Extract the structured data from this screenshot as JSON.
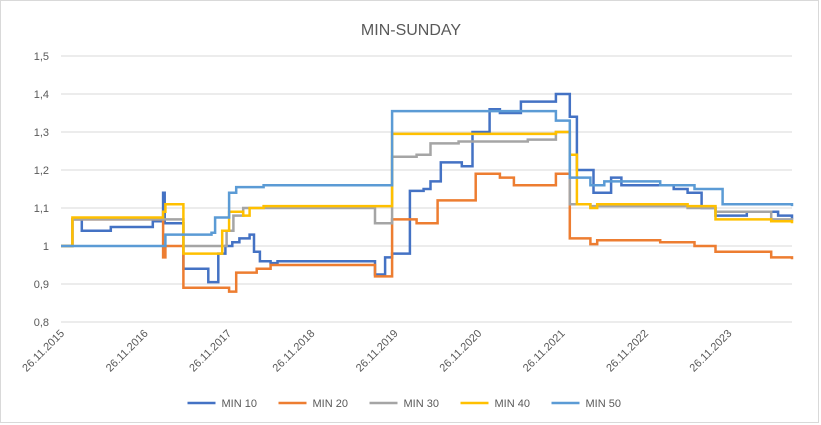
{
  "chart_data": {
    "type": "line",
    "title": "MIN-SUNDAY",
    "xlabel": "",
    "ylabel": "",
    "ylim": [
      0.8,
      1.5
    ],
    "y_ticks": [
      0.8,
      0.9,
      1,
      1.1,
      1.2,
      1.3,
      1.4,
      1.5
    ],
    "y_tick_labels": [
      "0,8",
      "0,9",
      "1",
      "1,1",
      "1,2",
      "1,3",
      "1,4",
      "1,5"
    ],
    "xlim": [
      "2015-11-26",
      "2024-08-31"
    ],
    "x_ticks": [
      "2015-11-26",
      "2016-11-26",
      "2017-11-26",
      "2018-11-26",
      "2019-11-26",
      "2020-11-26",
      "2021-11-26",
      "2022-11-26",
      "2023-11-26"
    ],
    "x_tick_labels": [
      "26.11.2015",
      "26.11.2016",
      "26.11.2017",
      "26.11.2018",
      "26.11.2019",
      "26.11.2020",
      "26.11.2021",
      "26.11.2022",
      "26.11.2023"
    ],
    "grid": "horizontal",
    "legend_position": "bottom",
    "step": true,
    "series": [
      {
        "name": "MIN 10",
        "color": "#4472C4",
        "points": [
          [
            "2015-11-26",
            1.0
          ],
          [
            "2016-01-15",
            1.07
          ],
          [
            "2016-02-25",
            1.04
          ],
          [
            "2016-07-01",
            1.05
          ],
          [
            "2017-01-01",
            1.065
          ],
          [
            "2017-02-15",
            1.14
          ],
          [
            "2017-02-22",
            1.06
          ],
          [
            "2017-05-15",
            0.94
          ],
          [
            "2017-09-01",
            0.905
          ],
          [
            "2017-10-15",
            0.98
          ],
          [
            "2017-11-15",
            1.0
          ],
          [
            "2017-12-15",
            1.01
          ],
          [
            "2018-01-15",
            1.02
          ],
          [
            "2018-03-01",
            1.03
          ],
          [
            "2018-03-20",
            0.985
          ],
          [
            "2018-04-15",
            0.96
          ],
          [
            "2018-06-01",
            0.955
          ],
          [
            "2018-07-01",
            0.96
          ],
          [
            "2019-06-01",
            0.96
          ],
          [
            "2019-09-01",
            0.925
          ],
          [
            "2019-10-15",
            0.97
          ],
          [
            "2019-11-15",
            0.98
          ],
          [
            "2020-02-01",
            1.145
          ],
          [
            "2020-04-01",
            1.15
          ],
          [
            "2020-05-01",
            1.17
          ],
          [
            "2020-06-15",
            1.22
          ],
          [
            "2020-09-15",
            1.21
          ],
          [
            "2020-11-01",
            1.3
          ],
          [
            "2021-01-15",
            1.36
          ],
          [
            "2021-03-01",
            1.35
          ],
          [
            "2021-06-01",
            1.38
          ],
          [
            "2021-08-01",
            1.38
          ],
          [
            "2021-11-01",
            1.4
          ],
          [
            "2022-01-01",
            1.34
          ],
          [
            "2022-02-01",
            1.2
          ],
          [
            "2022-04-15",
            1.14
          ],
          [
            "2022-07-01",
            1.18
          ],
          [
            "2022-08-15",
            1.16
          ],
          [
            "2023-04-01",
            1.15
          ],
          [
            "2023-06-01",
            1.14
          ],
          [
            "2023-08-01",
            1.1
          ],
          [
            "2023-10-01",
            1.08
          ],
          [
            "2024-01-01",
            1.08
          ],
          [
            "2024-02-15",
            1.09
          ],
          [
            "2024-07-01",
            1.08
          ],
          [
            "2024-08-31",
            1.07
          ]
        ]
      },
      {
        "name": "MIN 20",
        "color": "#ED7D31",
        "points": [
          [
            "2015-11-26",
            1.0
          ],
          [
            "2016-01-15",
            1.07
          ],
          [
            "2016-07-01",
            1.07
          ],
          [
            "2017-02-15",
            0.97
          ],
          [
            "2017-02-25",
            1.0
          ],
          [
            "2017-05-15",
            0.89
          ],
          [
            "2017-12-01",
            0.88
          ],
          [
            "2018-01-01",
            0.93
          ],
          [
            "2018-04-01",
            0.94
          ],
          [
            "2018-06-01",
            0.95
          ],
          [
            "2019-09-01",
            0.92
          ],
          [
            "2019-11-15",
            1.07
          ],
          [
            "2020-03-01",
            1.06
          ],
          [
            "2020-06-01",
            1.12
          ],
          [
            "2020-11-15",
            1.19
          ],
          [
            "2021-03-01",
            1.18
          ],
          [
            "2021-05-01",
            1.16
          ],
          [
            "2021-11-01",
            1.19
          ],
          [
            "2022-01-01",
            1.02
          ],
          [
            "2022-04-01",
            1.005
          ],
          [
            "2022-05-01",
            1.015
          ],
          [
            "2023-02-01",
            1.01
          ],
          [
            "2023-07-01",
            1.0
          ],
          [
            "2023-10-01",
            0.985
          ],
          [
            "2024-06-01",
            0.97
          ],
          [
            "2024-08-31",
            0.965
          ]
        ]
      },
      {
        "name": "MIN 30",
        "color": "#A5A5A5",
        "points": [
          [
            "2015-11-26",
            1.0
          ],
          [
            "2016-01-15",
            1.07
          ],
          [
            "2017-04-01",
            1.07
          ],
          [
            "2017-05-15",
            1.0
          ],
          [
            "2017-09-01",
            1.0
          ],
          [
            "2017-11-20",
            1.04
          ],
          [
            "2017-12-20",
            1.08
          ],
          [
            "2018-02-01",
            1.1
          ],
          [
            "2018-05-01",
            1.1
          ],
          [
            "2019-09-01",
            1.06
          ],
          [
            "2019-11-15",
            1.235
          ],
          [
            "2020-03-01",
            1.24
          ],
          [
            "2020-05-01",
            1.27
          ],
          [
            "2020-09-01",
            1.275
          ],
          [
            "2021-07-01",
            1.28
          ],
          [
            "2021-11-01",
            1.3
          ],
          [
            "2022-01-01",
            1.11
          ],
          [
            "2022-04-01",
            1.105
          ],
          [
            "2023-06-01",
            1.1
          ],
          [
            "2023-10-01",
            1.09
          ],
          [
            "2024-06-01",
            1.07
          ],
          [
            "2024-08-31",
            1.065
          ]
        ]
      },
      {
        "name": "MIN 40",
        "color": "#FFC000",
        "points": [
          [
            "2015-11-26",
            1.0
          ],
          [
            "2016-01-15",
            1.075
          ],
          [
            "2017-02-15",
            1.09
          ],
          [
            "2017-02-25",
            1.11
          ],
          [
            "2017-05-15",
            0.98
          ],
          [
            "2017-11-01",
            1.04
          ],
          [
            "2017-12-01",
            1.09
          ],
          [
            "2018-02-01",
            1.08
          ],
          [
            "2018-03-01",
            1.1
          ],
          [
            "2018-05-01",
            1.105
          ],
          [
            "2019-11-15",
            1.295
          ],
          [
            "2021-11-01",
            1.3
          ],
          [
            "2022-01-01",
            1.24
          ],
          [
            "2022-02-01",
            1.11
          ],
          [
            "2022-04-01",
            1.1
          ],
          [
            "2022-05-01",
            1.11
          ],
          [
            "2023-06-01",
            1.105
          ],
          [
            "2023-10-01",
            1.07
          ],
          [
            "2024-06-01",
            1.065
          ],
          [
            "2024-08-31",
            1.06
          ]
        ]
      },
      {
        "name": "MIN 50",
        "color": "#5B9BD5",
        "points": [
          [
            "2015-11-26",
            1.0
          ],
          [
            "2017-02-15",
            1.0
          ],
          [
            "2017-02-25",
            1.03
          ],
          [
            "2017-09-15",
            1.035
          ],
          [
            "2017-10-01",
            1.075
          ],
          [
            "2017-12-01",
            1.14
          ],
          [
            "2018-01-01",
            1.155
          ],
          [
            "2018-05-01",
            1.16
          ],
          [
            "2019-11-15",
            1.355
          ],
          [
            "2021-08-01",
            1.355
          ],
          [
            "2021-11-01",
            1.33
          ],
          [
            "2022-01-01",
            1.18
          ],
          [
            "2022-04-01",
            1.16
          ],
          [
            "2022-06-01",
            1.17
          ],
          [
            "2023-02-01",
            1.16
          ],
          [
            "2023-04-01",
            1.16
          ],
          [
            "2023-07-01",
            1.15
          ],
          [
            "2023-11-01",
            1.11
          ],
          [
            "2024-08-31",
            1.105
          ]
        ]
      }
    ]
  }
}
